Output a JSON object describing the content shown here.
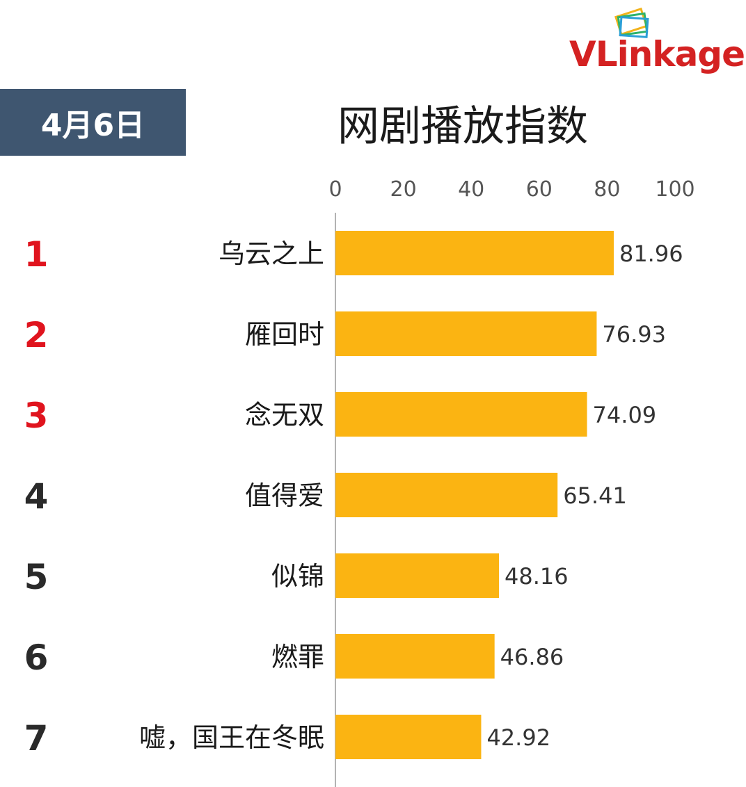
{
  "header": {
    "date_label": "4月6日",
    "title": "网剧播放指数",
    "logo_text_v": "V",
    "logo_text_link": "Link",
    "logo_text_age": "age"
  },
  "colors": {
    "bar": "#fbb412",
    "rank_top": "#e0141e",
    "rank_other": "#2a2a2a",
    "badge": "#3f5670"
  },
  "chart_data": {
    "type": "bar",
    "orientation": "horizontal",
    "title": "网剧播放指数",
    "categories": [
      "乌云之上",
      "雁回时",
      "念无双",
      "值得爱",
      "似锦",
      "燃罪",
      "嘘，国王在冬眠"
    ],
    "ranks": [
      "1",
      "2",
      "3",
      "4",
      "5",
      "6",
      "7"
    ],
    "values": [
      81.96,
      76.93,
      74.09,
      65.41,
      48.16,
      46.86,
      42.92
    ],
    "value_labels": [
      "81.96",
      "76.93",
      "74.09",
      "65.41",
      "48.16",
      "46.86",
      "42.92"
    ],
    "xticks": [
      "0",
      "20",
      "40",
      "60",
      "80",
      "100"
    ],
    "xlim": [
      0,
      100
    ],
    "grid": false,
    "legend": "none"
  }
}
